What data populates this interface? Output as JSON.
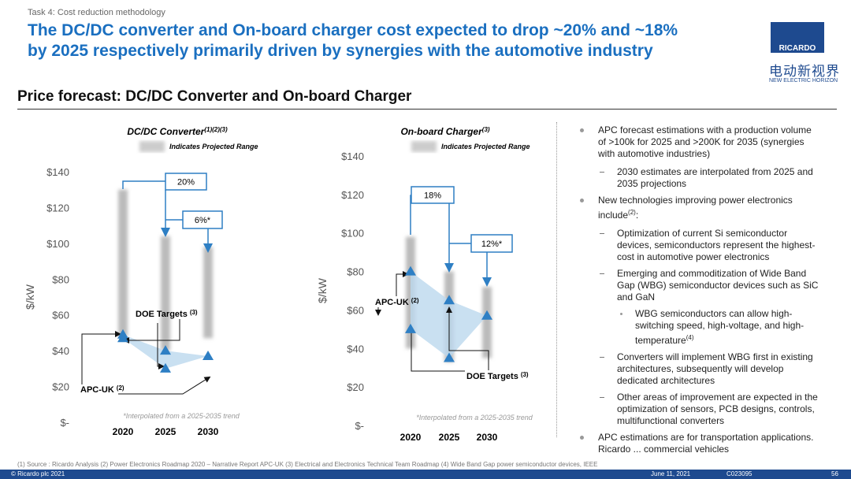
{
  "header": {
    "task": "Task 4: Cost reduction methodology",
    "title_line1": "The DC/DC converter and On-board charger cost expected to drop ~20% and ~18%",
    "title_line2": "by 2025 respectively primarily driven by synergies with the automotive industry",
    "logo_brand": "RICARDO",
    "logo_cn": "电动新视界",
    "logo_en": "NEW ELECTRIC HORIZON"
  },
  "section_title": "Price forecast: DC/DC Converter and On-board Charger",
  "chart_data": [
    {
      "type": "triangle-scatter",
      "title": "DC/DC Converter",
      "title_refs": "(1)(2)(3)",
      "legend_label": "Indicates Projected Range",
      "y_label": "$/kW",
      "note": "*Interpolated from a 2025-2035 trend",
      "categories": [
        "2020",
        "2025",
        "2030"
      ],
      "ylim": [
        0,
        140
      ],
      "yticks": [
        {
          "value": 0,
          "label": "$-"
        },
        {
          "value": 20,
          "label": "$20"
        },
        {
          "value": 40,
          "label": "$40"
        },
        {
          "value": 60,
          "label": "$60"
        },
        {
          "value": 80,
          "label": "$80"
        },
        {
          "value": 100,
          "label": "$100"
        },
        {
          "value": 120,
          "label": "$120"
        },
        {
          "value": 140,
          "label": "$140"
        }
      ],
      "projected_range": {
        "low": [
          48,
          40,
          47
        ],
        "high": [
          130,
          104,
          98
        ]
      },
      "series": [
        {
          "name": "APC-UK",
          "ref": "(2)",
          "color": "#2e7fc4",
          "values": [
            49,
            40,
            37
          ]
        },
        {
          "name": "DOE Targets",
          "ref": "(3)",
          "color": "#2e7fc4",
          "values": [
            47,
            30,
            null
          ]
        }
      ],
      "annotations": [
        {
          "label": "20%"
        },
        {
          "label": "6%*"
        }
      ]
    },
    {
      "type": "triangle-scatter",
      "title": "On-board Charger",
      "title_refs": "(3)",
      "legend_label": "Indicates Projected Range",
      "y_label": "$/kW",
      "note": "*Interpolated from a 2025-2035 trend",
      "categories": [
        "2020",
        "2025",
        "2030"
      ],
      "ylim": [
        0,
        140
      ],
      "yticks": [
        {
          "value": 0,
          "label": "$-"
        },
        {
          "value": 20,
          "label": "$20"
        },
        {
          "value": 40,
          "label": "$40"
        },
        {
          "value": 60,
          "label": "$60"
        },
        {
          "value": 80,
          "label": "$80"
        },
        {
          "value": 100,
          "label": "$100"
        },
        {
          "value": 120,
          "label": "$120"
        },
        {
          "value": 140,
          "label": "$140"
        }
      ],
      "projected_range": {
        "low": [
          40,
          33,
          35
        ],
        "high": [
          98,
          80,
          72
        ]
      },
      "series": [
        {
          "name": "APC-UK",
          "ref": "(2)",
          "color": "#2e7fc4",
          "values": [
            80,
            65,
            57
          ]
        },
        {
          "name": "DOE Targets",
          "ref": "(3)",
          "color": "#2e7fc4",
          "values": [
            50,
            35,
            null
          ]
        }
      ],
      "annotations": [
        {
          "label": "18%"
        },
        {
          "label": "12%*"
        }
      ]
    }
  ],
  "bullets": [
    {
      "text": "APC forecast estimations with a production volume of >100k for 2025 and >200K for 2035 (synergies with automotive industries)",
      "sub": [
        {
          "text": "2030 estimates are interpolated from  2025 and 2035 projections"
        }
      ]
    },
    {
      "text": "New technologies improving power electronics include",
      "sup": "(2)",
      "after": ":",
      "sub": [
        {
          "text": "Optimization of current Si semiconductor devices, semiconductors represent the highest-cost in automotive power electronics"
        },
        {
          "text": "Emerging and commoditization of Wide Band Gap (WBG) semiconductor devices such as SiC and GaN",
          "sub": [
            {
              "text": "WBG semiconductors can allow high-switching speed, high-voltage, and high-temperature",
              "sup": "(4)"
            }
          ]
        },
        {
          "text": "Converters will implement WBG first in existing architectures, subsequently will develop dedicated architectures"
        },
        {
          "text": "Other areas of improvement are expected in the optimization of sensors, PCB designs, controls, multifunctional converters"
        }
      ]
    },
    {
      "text": "APC estimations are for transportation applications. Ricardo ... commercial vehicles"
    }
  ],
  "footnote": "(1)  Source : Ricardo Analysis (2) Power Electronics Roadmap 2020 – Narrative Report APC-UK (3) Electrical and Electronics Technical Team Roadmap (4) Wide Band Gap power semiconductor devices, IEEE",
  "footer": {
    "copyright": "© Ricardo plc 2021",
    "date": "June 11,  2021",
    "code": "C023095",
    "page": "56"
  }
}
